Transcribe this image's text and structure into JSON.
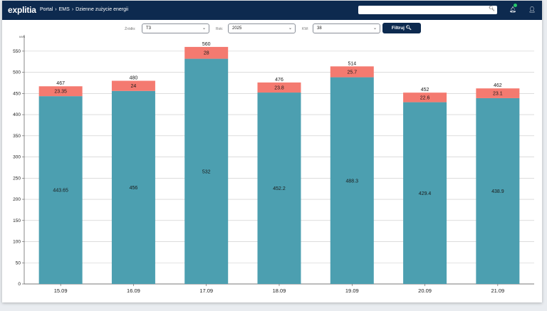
{
  "header": {
    "logo": "explitia",
    "breadcrumb": [
      "Portal",
      "›",
      "EMS",
      "›",
      "Dzienne zużycie energii"
    ],
    "search_placeholder": ""
  },
  "filters": {
    "zrodlo_label": "Źródło:",
    "zrodlo_value": "T3",
    "rok_label": "Rok:",
    "rok_value": "2025",
    "kw_label": "KW:",
    "kw_value": "38",
    "button_label": "Filtruj"
  },
  "chart_data": {
    "type": "bar",
    "stacked": true,
    "categories": [
      "15.09",
      "16.09",
      "17.09",
      "18.09",
      "19.09",
      "20.09",
      "21.09"
    ],
    "series": [
      {
        "values": [
          443.65,
          456,
          532,
          452.2,
          488.3,
          429.4,
          438.9
        ],
        "color": "#4c9fb0"
      },
      {
        "values": [
          23.35,
          24,
          28,
          23.8,
          25.7,
          22.6,
          23.1
        ],
        "color": "#f47a70"
      }
    ],
    "totals": [
      467,
      480,
      560,
      476,
      514,
      452,
      462
    ],
    "ylabel": "kWh",
    "ylim": [
      0,
      575
    ],
    "yticks": [
      0,
      50,
      100,
      150,
      200,
      250,
      300,
      350,
      400,
      450,
      500,
      550
    ],
    "grid": true
  },
  "colors": {
    "header_bg": "#0d2a4f",
    "bar_base": "#4c9fb0",
    "bar_top": "#f47a70"
  }
}
